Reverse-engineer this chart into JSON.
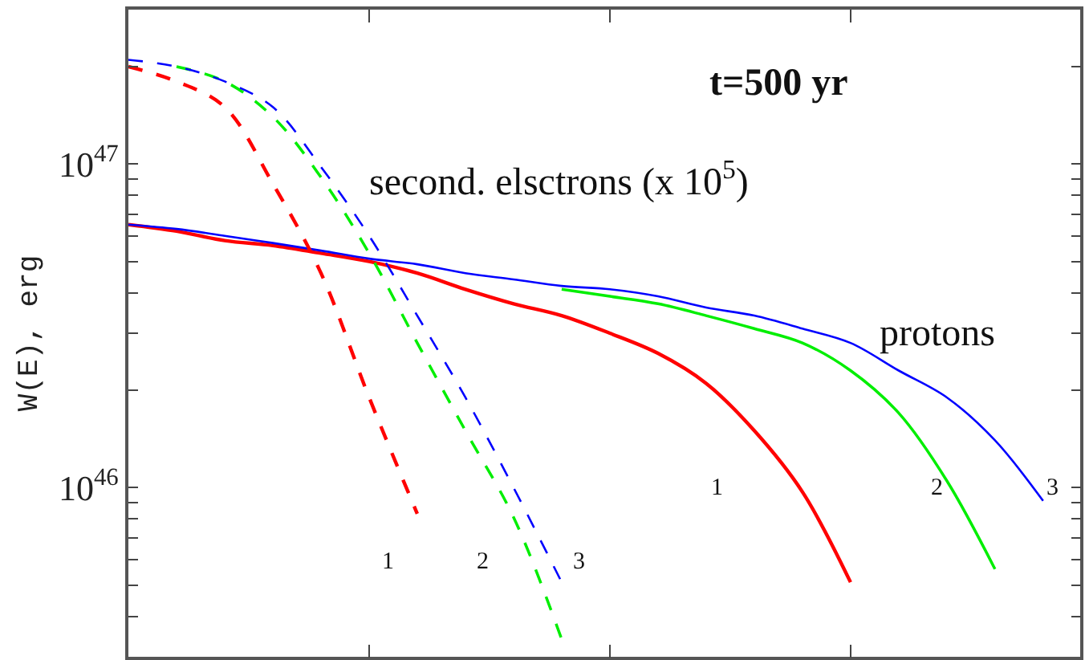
{
  "chart_data": {
    "type": "line",
    "ylabel": "W(E), erg",
    "log": "y",
    "grid": false,
    "marker": "none",
    "tick_labels": "y",
    "categories": [
      null,
      null,
      null,
      null,
      null,
      null,
      null,
      null,
      null,
      null,
      null,
      null,
      null,
      null,
      null,
      null,
      null,
      null,
      null,
      null
    ],
    "ylim": [
      3e+45,
      3e+47
    ],
    "yticks": [
      {
        "value": 4e+45,
        "label": null
      },
      {
        "value": 5e+45,
        "label": null
      },
      {
        "value": 6e+45,
        "label": null
      },
      {
        "value": 7e+45,
        "label": null
      },
      {
        "value": 8e+45,
        "label": null
      },
      {
        "value": 9e+45,
        "label": null
      },
      {
        "value": 1e+46,
        "label": "10$^{46}$"
      },
      {
        "value": 2e+46,
        "label": null
      },
      {
        "value": 3e+46,
        "label": null
      },
      {
        "value": 4e+46,
        "label": null
      },
      {
        "value": 5e+46,
        "label": null
      },
      {
        "value": 6e+46,
        "label": null
      },
      {
        "value": 7e+46,
        "label": null
      },
      {
        "value": 8e+46,
        "label": null
      },
      {
        "value": 9e+46,
        "label": null
      },
      {
        "value": 1e+47,
        "label": "10$^{47}$"
      },
      {
        "value": 2e+47,
        "label": null
      },
      {
        "value": 3e+47,
        "label": null
      }
    ],
    "series": [
      {
        "color": "#ff0000",
        "line_style": "solid",
        "values": [
          6.5e+46,
          6.2e+46,
          5.8e+46,
          5.6e+46,
          5.3e+46,
          5e+46,
          4.6e+46,
          4.1e+46,
          3.7e+46,
          3.4e+46,
          3e+46,
          2.6e+46,
          2.1e+46,
          1.5e+46,
          9.7e+45,
          5.1e+45,
          null,
          null,
          null,
          null
        ]
      },
      {
        "color": "#00ee00",
        "line_style": "solid",
        "values": [
          null,
          null,
          null,
          null,
          null,
          null,
          null,
          null,
          null,
          4.1e+46,
          3.9e+46,
          3.7e+46,
          3.4e+46,
          3.1e+46,
          2.8e+46,
          2.3e+46,
          1.7e+46,
          1.05e+46,
          5.6e+45,
          null
        ]
      },
      {
        "color": "#0000ff",
        "line_style": "solid",
        "values": [
          6.5e+46,
          6.3e+46,
          6e+46,
          5.7e+46,
          5.4e+46,
          5.1e+46,
          4.9e+46,
          4.6e+46,
          4.4e+46,
          4.2e+46,
          4.1e+46,
          3.9e+46,
          3.6e+46,
          3.4e+46,
          3.1e+46,
          2.8e+46,
          2.3e+46,
          1.9e+46,
          1.4e+46,
          9.1e+45
        ]
      },
      {
        "color": "#ff0000",
        "line_style": "dashed",
        "values": [
          2e+47,
          1.8e+47,
          1.5e+47,
          8.7e+46,
          4.6e+46,
          1.9e+46,
          8.3e+45,
          null,
          null,
          null,
          null,
          null,
          null,
          null,
          null,
          null,
          null,
          null,
          null,
          null
        ]
      },
      {
        "color": "#00ee00",
        "line_style": "dashed",
        "values": [
          null,
          2e+47,
          1.8e+47,
          1.4e+47,
          9.1e+46,
          5.3e+46,
          2.8e+46,
          1.5e+46,
          8.1e+45,
          3.4e+45,
          null,
          null,
          null,
          null,
          null,
          null,
          null,
          null,
          null,
          null
        ]
      },
      {
        "color": "#0000ff",
        "line_style": "dashed",
        "values": [
          2.1e+47,
          2e+47,
          1.8e+47,
          1.5e+47,
          9.8e+46,
          6e+46,
          3.4e+46,
          1.9e+46,
          1e+46,
          5.1e+45,
          null,
          null,
          null,
          null,
          null,
          null,
          null,
          null,
          null,
          null
        ]
      }
    ],
    "annotations": [
      "t=500 yr",
      "second. elsctrons (x 10$^{5}$)",
      "protons",
      "1",
      "2",
      "3",
      "1",
      "2",
      "3"
    ]
  }
}
